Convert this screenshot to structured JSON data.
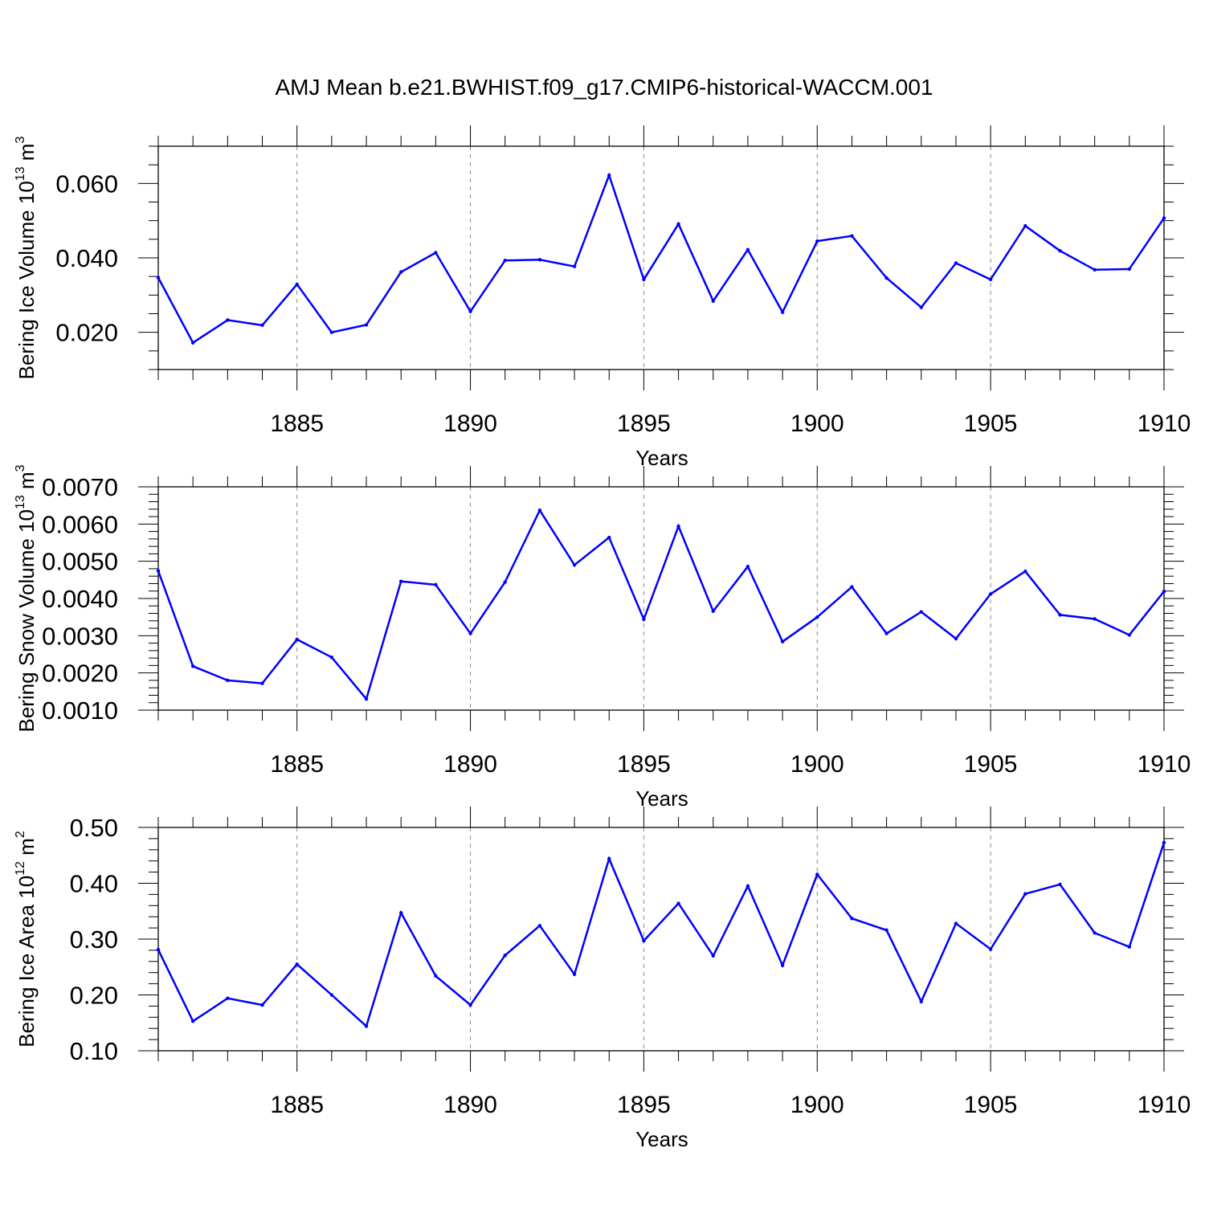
{
  "title": "AMJ Mean b.e21.BWHIST.f09_g17.CMIP6-historical-WACCM.001",
  "colors": {
    "line": "#0000ff",
    "axis": "#000000",
    "grid": "#888888"
  },
  "chart_data": [
    {
      "type": "line",
      "ylabel": {
        "text": "Bering Ice Volume 10",
        "sup": "13",
        "unit": " m",
        "unit_sup": "3"
      },
      "xlabel": "Years",
      "xlim": [
        1881,
        1910
      ],
      "ylim": [
        0.01,
        0.07
      ],
      "yticks": [
        0.02,
        0.04,
        0.06
      ],
      "ytick_labels": [
        "0.020",
        "0.040",
        "0.060"
      ],
      "xticks": [
        1885,
        1890,
        1895,
        1900,
        1905,
        1910
      ],
      "xtick_labels": [
        "1885",
        "1890",
        "1895",
        "1900",
        "1905",
        "1910"
      ],
      "y_minor_step": 0.005,
      "x": [
        1881,
        1882,
        1883,
        1884,
        1885,
        1886,
        1887,
        1888,
        1889,
        1890,
        1891,
        1892,
        1893,
        1894,
        1895,
        1896,
        1897,
        1898,
        1899,
        1900,
        1901,
        1902,
        1903,
        1904,
        1905,
        1906,
        1907,
        1908,
        1909,
        1910
      ],
      "values": [
        0.0347,
        0.0172,
        0.0233,
        0.0219,
        0.0329,
        0.02,
        0.022,
        0.0362,
        0.0414,
        0.0256,
        0.0393,
        0.0395,
        0.0377,
        0.0622,
        0.0342,
        0.0491,
        0.0284,
        0.0422,
        0.0254,
        0.0445,
        0.0459,
        0.0346,
        0.0267,
        0.0386,
        0.0342,
        0.0486,
        0.0419,
        0.0368,
        0.037,
        0.0507
      ]
    },
    {
      "type": "line",
      "ylabel": {
        "text": "Bering Snow Volume 10",
        "sup": "13",
        "unit": " m",
        "unit_sup": "3"
      },
      "xlabel": "Years",
      "xlim": [
        1881,
        1910
      ],
      "ylim": [
        0.001,
        0.007
      ],
      "yticks": [
        0.001,
        0.002,
        0.003,
        0.004,
        0.005,
        0.006,
        0.007
      ],
      "ytick_labels": [
        "0.0010",
        "0.0020",
        "0.0030",
        "0.0040",
        "0.0050",
        "0.0060",
        "0.0070"
      ],
      "xticks": [
        1885,
        1890,
        1895,
        1900,
        1905,
        1910
      ],
      "xtick_labels": [
        "1885",
        "1890",
        "1895",
        "1900",
        "1905",
        "1910"
      ],
      "y_minor_step": 0.0002,
      "x": [
        1881,
        1882,
        1883,
        1884,
        1885,
        1886,
        1887,
        1888,
        1889,
        1890,
        1891,
        1892,
        1893,
        1894,
        1895,
        1896,
        1897,
        1898,
        1899,
        1900,
        1901,
        1902,
        1903,
        1904,
        1905,
        1906,
        1907,
        1908,
        1909,
        1910
      ],
      "values": [
        0.00474,
        0.00218,
        0.0018,
        0.00172,
        0.0029,
        0.00242,
        0.0013,
        0.00446,
        0.00437,
        0.00306,
        0.00444,
        0.00637,
        0.0049,
        0.00564,
        0.00344,
        0.00594,
        0.00366,
        0.00486,
        0.00284,
        0.0035,
        0.00431,
        0.00306,
        0.00364,
        0.00292,
        0.00412,
        0.00473,
        0.00356,
        0.00345,
        0.00302,
        0.00419
      ]
    },
    {
      "type": "line",
      "ylabel": {
        "text": "Bering Ice Area 10",
        "sup": "12",
        "unit": " m",
        "unit_sup": "2"
      },
      "xlabel": "Years",
      "xlim": [
        1881,
        1910
      ],
      "ylim": [
        0.1,
        0.5
      ],
      "yticks": [
        0.1,
        0.2,
        0.3,
        0.4,
        0.5
      ],
      "ytick_labels": [
        "0.10",
        "0.20",
        "0.30",
        "0.40",
        "0.50"
      ],
      "xticks": [
        1885,
        1890,
        1895,
        1900,
        1905,
        1910
      ],
      "xtick_labels": [
        "1885",
        "1890",
        "1895",
        "1900",
        "1905",
        "1910"
      ],
      "y_minor_step": 0.02,
      "x": [
        1881,
        1882,
        1883,
        1884,
        1885,
        1886,
        1887,
        1888,
        1889,
        1890,
        1891,
        1892,
        1893,
        1894,
        1895,
        1896,
        1897,
        1898,
        1899,
        1900,
        1901,
        1902,
        1903,
        1904,
        1905,
        1906,
        1907,
        1908,
        1909,
        1910
      ],
      "values": [
        0.281,
        0.153,
        0.194,
        0.182,
        0.255,
        0.2,
        0.144,
        0.347,
        0.234,
        0.182,
        0.271,
        0.324,
        0.237,
        0.444,
        0.297,
        0.364,
        0.27,
        0.395,
        0.253,
        0.416,
        0.337,
        0.316,
        0.188,
        0.328,
        0.282,
        0.381,
        0.398,
        0.311,
        0.286,
        0.473
      ]
    }
  ]
}
